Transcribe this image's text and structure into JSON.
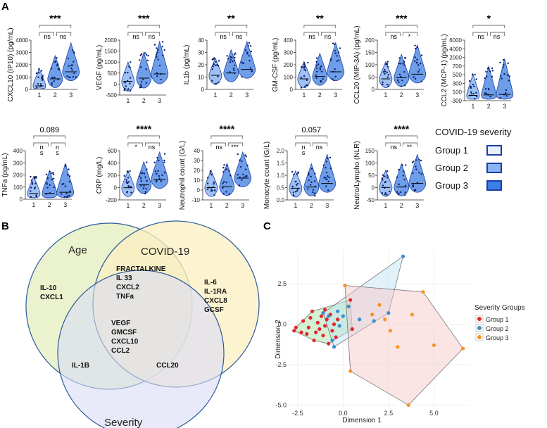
{
  "panel_labels": {
    "a": "A",
    "b": "B",
    "c": "C"
  },
  "chart_data": [
    {
      "type": "violin",
      "id": "cxcl10",
      "ylabel": "CXCL10 (IP10) (pg/mL)",
      "yticks": [
        "0",
        "1000",
        "2000",
        "3000",
        "4000"
      ],
      "ylim": [
        0,
        4200
      ],
      "categories": [
        "1",
        "2",
        "3"
      ],
      "medians": [
        300,
        900,
        1500
      ],
      "overall_sig": "***",
      "pairs": [
        {
          "label": "ns"
        },
        {
          "label": "ns"
        }
      ]
    },
    {
      "type": "violin",
      "id": "vegf",
      "ylabel": "VEGF (pg/mL)",
      "yticks": [
        "-500",
        "0",
        "500",
        "1000",
        "1500",
        "2000"
      ],
      "ylim": [
        -500,
        2100
      ],
      "categories": [
        "1",
        "2",
        "3"
      ],
      "medians": [
        150,
        300,
        500
      ],
      "overall_sig": "***",
      "pairs": [
        {
          "label": "ns"
        },
        {
          "label": "ns"
        }
      ]
    },
    {
      "type": "violin",
      "id": "il1b",
      "ylabel": "IL1b (pg/mL)",
      "yticks": [
        "0",
        "10",
        "20",
        "30",
        "40"
      ],
      "ylim": [
        0,
        42
      ],
      "categories": [
        "1",
        "2",
        "3"
      ],
      "medians": [
        12,
        14,
        17
      ],
      "overall_sig": "**",
      "pairs": [
        {
          "label": "ns"
        },
        {
          "label": "ns"
        }
      ]
    },
    {
      "type": "violin",
      "id": "gmcsf",
      "ylabel": "GM-CSF (pg/mL)",
      "yticks": [
        "0",
        "100",
        "200",
        "300",
        "400"
      ],
      "ylim": [
        0,
        420
      ],
      "categories": [
        "1",
        "2",
        "3"
      ],
      "medians": [
        90,
        110,
        150
      ],
      "overall_sig": "**",
      "pairs": [
        {
          "label": "ns"
        },
        {
          "label": "ns"
        }
      ]
    },
    {
      "type": "violin",
      "id": "ccl20",
      "ylabel": "CCL20 (MIP-3A) (pg/mL)",
      "yticks": [
        "0",
        "50",
        "100",
        "150",
        "200"
      ],
      "ylim": [
        0,
        210
      ],
      "categories": [
        "1",
        "2",
        "3"
      ],
      "medians": [
        45,
        50,
        65
      ],
      "overall_sig": "***",
      "pairs": [
        {
          "label": "ns"
        },
        {
          "label": "*"
        }
      ]
    },
    {
      "type": "violin",
      "id": "ccl2",
      "ylabel": "CCL2 (MCP-1) (pg/mL)",
      "yticks": [
        "-300",
        "100",
        "300",
        "500",
        "700",
        "2000",
        "4000",
        "6000"
      ],
      "ylim": [
        -300,
        6000
      ],
      "categories": [
        "1",
        "2",
        "3"
      ],
      "medians": [
        250,
        300,
        350
      ],
      "overall_sig": "*",
      "pairs": [
        {
          "label": "ns"
        },
        {
          "label": "ns"
        }
      ]
    },
    {
      "type": "violin",
      "id": "tnfa",
      "ylabel": "TNFa (pg/mL)",
      "yticks": [
        "0",
        "100",
        "200",
        "300",
        "400"
      ],
      "ylim": [
        0,
        420
      ],
      "categories": [
        "1",
        "2",
        "3"
      ],
      "medians": [
        50,
        50,
        60
      ],
      "overall_sig": "0.089",
      "pairs": [
        {
          "label": "n\ns"
        },
        {
          "label": "n\ns"
        }
      ]
    },
    {
      "type": "violin",
      "id": "crp",
      "ylabel": "CRP (mg/L)",
      "yticks": [
        "-200",
        "0",
        "200",
        "400",
        "600"
      ],
      "ylim": [
        -200,
        650
      ],
      "categories": [
        "1",
        "2",
        "3"
      ],
      "medians": [
        10,
        60,
        150
      ],
      "overall_sig": "****",
      "pairs": [
        {
          "label": "*"
        },
        {
          "label": "ns"
        }
      ]
    },
    {
      "type": "violin",
      "id": "neut",
      "ylabel": "Neutrophil count (G/L)",
      "yticks": [
        "-10",
        "0",
        "10",
        "20",
        "30",
        "40"
      ],
      "ylim": [
        -10,
        42
      ],
      "categories": [
        "1",
        "2",
        "3"
      ],
      "medians": [
        3,
        4,
        13
      ],
      "overall_sig": "****",
      "pairs": [
        {
          "label": "ns"
        },
        {
          "label": "***"
        }
      ]
    },
    {
      "type": "violin",
      "id": "mono",
      "ylabel": "Monocyte count (G/L)",
      "yticks": [
        "0.0",
        "0.5",
        "1.0",
        "1.5",
        "2.0"
      ],
      "ylim": [
        0,
        2.1
      ],
      "categories": [
        "1",
        "2",
        "3"
      ],
      "medians": [
        0.5,
        0.55,
        0.7
      ],
      "overall_sig": "0.057",
      "pairs": [
        {
          "label": "n\ns"
        },
        {
          "label": "ns"
        }
      ]
    },
    {
      "type": "violin",
      "id": "nlr",
      "ylabel": "Neutro/Lympho (NLR)",
      "yticks": [
        "-50",
        "0",
        "50",
        "100",
        "150"
      ],
      "ylim": [
        -50,
        160
      ],
      "categories": [
        "1",
        "2",
        "3"
      ],
      "medians": [
        3,
        5,
        20
      ],
      "overall_sig": "****",
      "pairs": [
        {
          "label": "ns"
        },
        {
          "label": "**"
        }
      ]
    },
    {
      "type": "scatter",
      "id": "mds",
      "title": "",
      "xlabel": "Dimension 1",
      "ylabel": "Dimension 2",
      "xticks": [
        "-2.5",
        "0.0",
        "2.5",
        "5.0"
      ],
      "yticks": [
        "2.5",
        "0.0",
        "-2.5",
        "-5.0"
      ],
      "xlim": [
        -3,
        7
      ],
      "ylim": [
        -5.2,
        4.6
      ],
      "legend_title": "Severity Groups",
      "series": [
        {
          "name": "Group 1",
          "color": "#e3262d",
          "points": [
            [
              -2.7,
              -0.4
            ],
            [
              -2.3,
              -0.5
            ],
            [
              -2.2,
              0.2
            ],
            [
              -2.0,
              -0.6
            ],
            [
              -1.9,
              -0.2
            ],
            [
              -1.8,
              0.4
            ],
            [
              -1.6,
              -1.0
            ],
            [
              -1.5,
              -0.5
            ],
            [
              -1.4,
              0.1
            ],
            [
              -1.3,
              -0.3
            ],
            [
              -1.2,
              0.5
            ],
            [
              -1.1,
              -0.7
            ],
            [
              -1.0,
              -0.1
            ],
            [
              -0.9,
              0.3
            ],
            [
              -0.8,
              -1.2
            ],
            [
              -0.7,
              0.6
            ],
            [
              -0.6,
              -0.4
            ],
            [
              -0.5,
              0.0
            ],
            [
              -0.4,
              -0.8
            ],
            [
              -0.3,
              0.3
            ],
            [
              0.4,
              1.5
            ],
            [
              0.5,
              -0.3
            ],
            [
              -1.7,
              0.8
            ],
            [
              -1.0,
              0.9
            ],
            [
              -2.6,
              -0.2
            ]
          ]
        },
        {
          "name": "Group 2",
          "color": "#3a8fd1",
          "points": [
            [
              -1.1,
              0.7
            ],
            [
              -0.8,
              0.5
            ],
            [
              -0.6,
              -1.0
            ],
            [
              -0.5,
              -1.4
            ],
            [
              -0.2,
              -0.1
            ],
            [
              0.0,
              0.5
            ],
            [
              0.3,
              1.1
            ],
            [
              0.9,
              0.3
            ],
            [
              1.7,
              0.2
            ],
            [
              2.5,
              0.7
            ],
            [
              3.3,
              4.2
            ],
            [
              -0.3,
              0.8
            ]
          ]
        },
        {
          "name": "Group 3",
          "color": "#f79320",
          "points": [
            [
              0.1,
              2.4
            ],
            [
              0.4,
              -2.9
            ],
            [
              2.0,
              1.2
            ],
            [
              2.3,
              0.3
            ],
            [
              2.6,
              -0.4
            ],
            [
              3.0,
              -1.4
            ],
            [
              3.6,
              -5.0
            ],
            [
              3.8,
              0.6
            ],
            [
              4.4,
              2.0
            ],
            [
              5.0,
              -1.3
            ],
            [
              6.6,
              -1.5
            ],
            [
              1.6,
              0.6
            ]
          ]
        }
      ]
    }
  ],
  "legend_a": {
    "title": "COVID-19 severity",
    "items": [
      {
        "label": "Group 1",
        "fill": "#e8efff"
      },
      {
        "label": "Group 2",
        "fill": "#8db4f2"
      },
      {
        "label": "Group 3",
        "fill": "#3a7ee8"
      }
    ]
  },
  "venn": {
    "age_label": "Age",
    "covid_label": "COVID-19",
    "severity_label": "Severity",
    "age_only": [
      "IL-10",
      "CXCL1"
    ],
    "age_covid": [
      "FRACTALKINE",
      "IL 33",
      "CXCL2",
      "TNFa"
    ],
    "covid_only": [
      "IL-6",
      "IL-1RA",
      "CXCL8",
      "GCSF"
    ],
    "all_three": [
      "VEGF",
      "GMCSF",
      "CXCL10",
      "CCL2"
    ],
    "age_severity": [
      "IL-1B"
    ],
    "covid_severity": [
      "CCL20"
    ],
    "colors": {
      "age": "#e8f0c6",
      "covid": "#fbefc2",
      "severity": "#d9dcf5",
      "stroke": "#2a5a9a"
    }
  },
  "colors": {
    "violin_fill": "#6f9ee8",
    "violin_fill_light": "#9fc0f2",
    "dot": "#0b1f6b",
    "median": "#000000"
  }
}
